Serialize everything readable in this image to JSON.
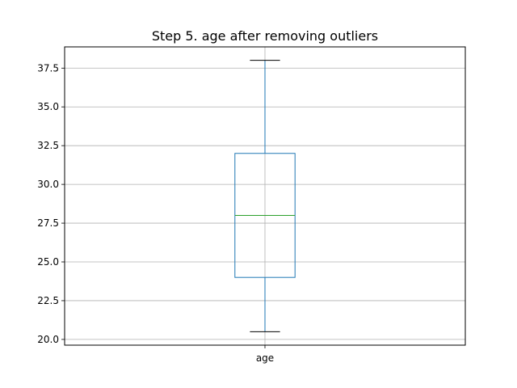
{
  "chart_data": {
    "type": "box",
    "title": "Step 5. age after removing outliers",
    "categories": [
      "age"
    ],
    "xlabel": "",
    "ylabel": "",
    "ylim": [
      19.63,
      38.87
    ],
    "yticks": [
      20.0,
      22.5,
      25.0,
      27.5,
      30.0,
      32.5,
      35.0,
      37.5
    ],
    "ytick_labels": [
      "20.0",
      "22.5",
      "25.0",
      "27.5",
      "30.0",
      "32.5",
      "35.0",
      "37.5"
    ],
    "grid": true,
    "boxes": [
      {
        "name": "age",
        "whisker_low": 20.5,
        "q1": 24.0,
        "median": 28.0,
        "q3": 32.0,
        "whisker_high": 38.0
      }
    ],
    "colors": {
      "box": "#1f77b4",
      "median": "#2ca02c",
      "whisker_cap": "#000000",
      "grid": "#b0b0b0"
    }
  }
}
